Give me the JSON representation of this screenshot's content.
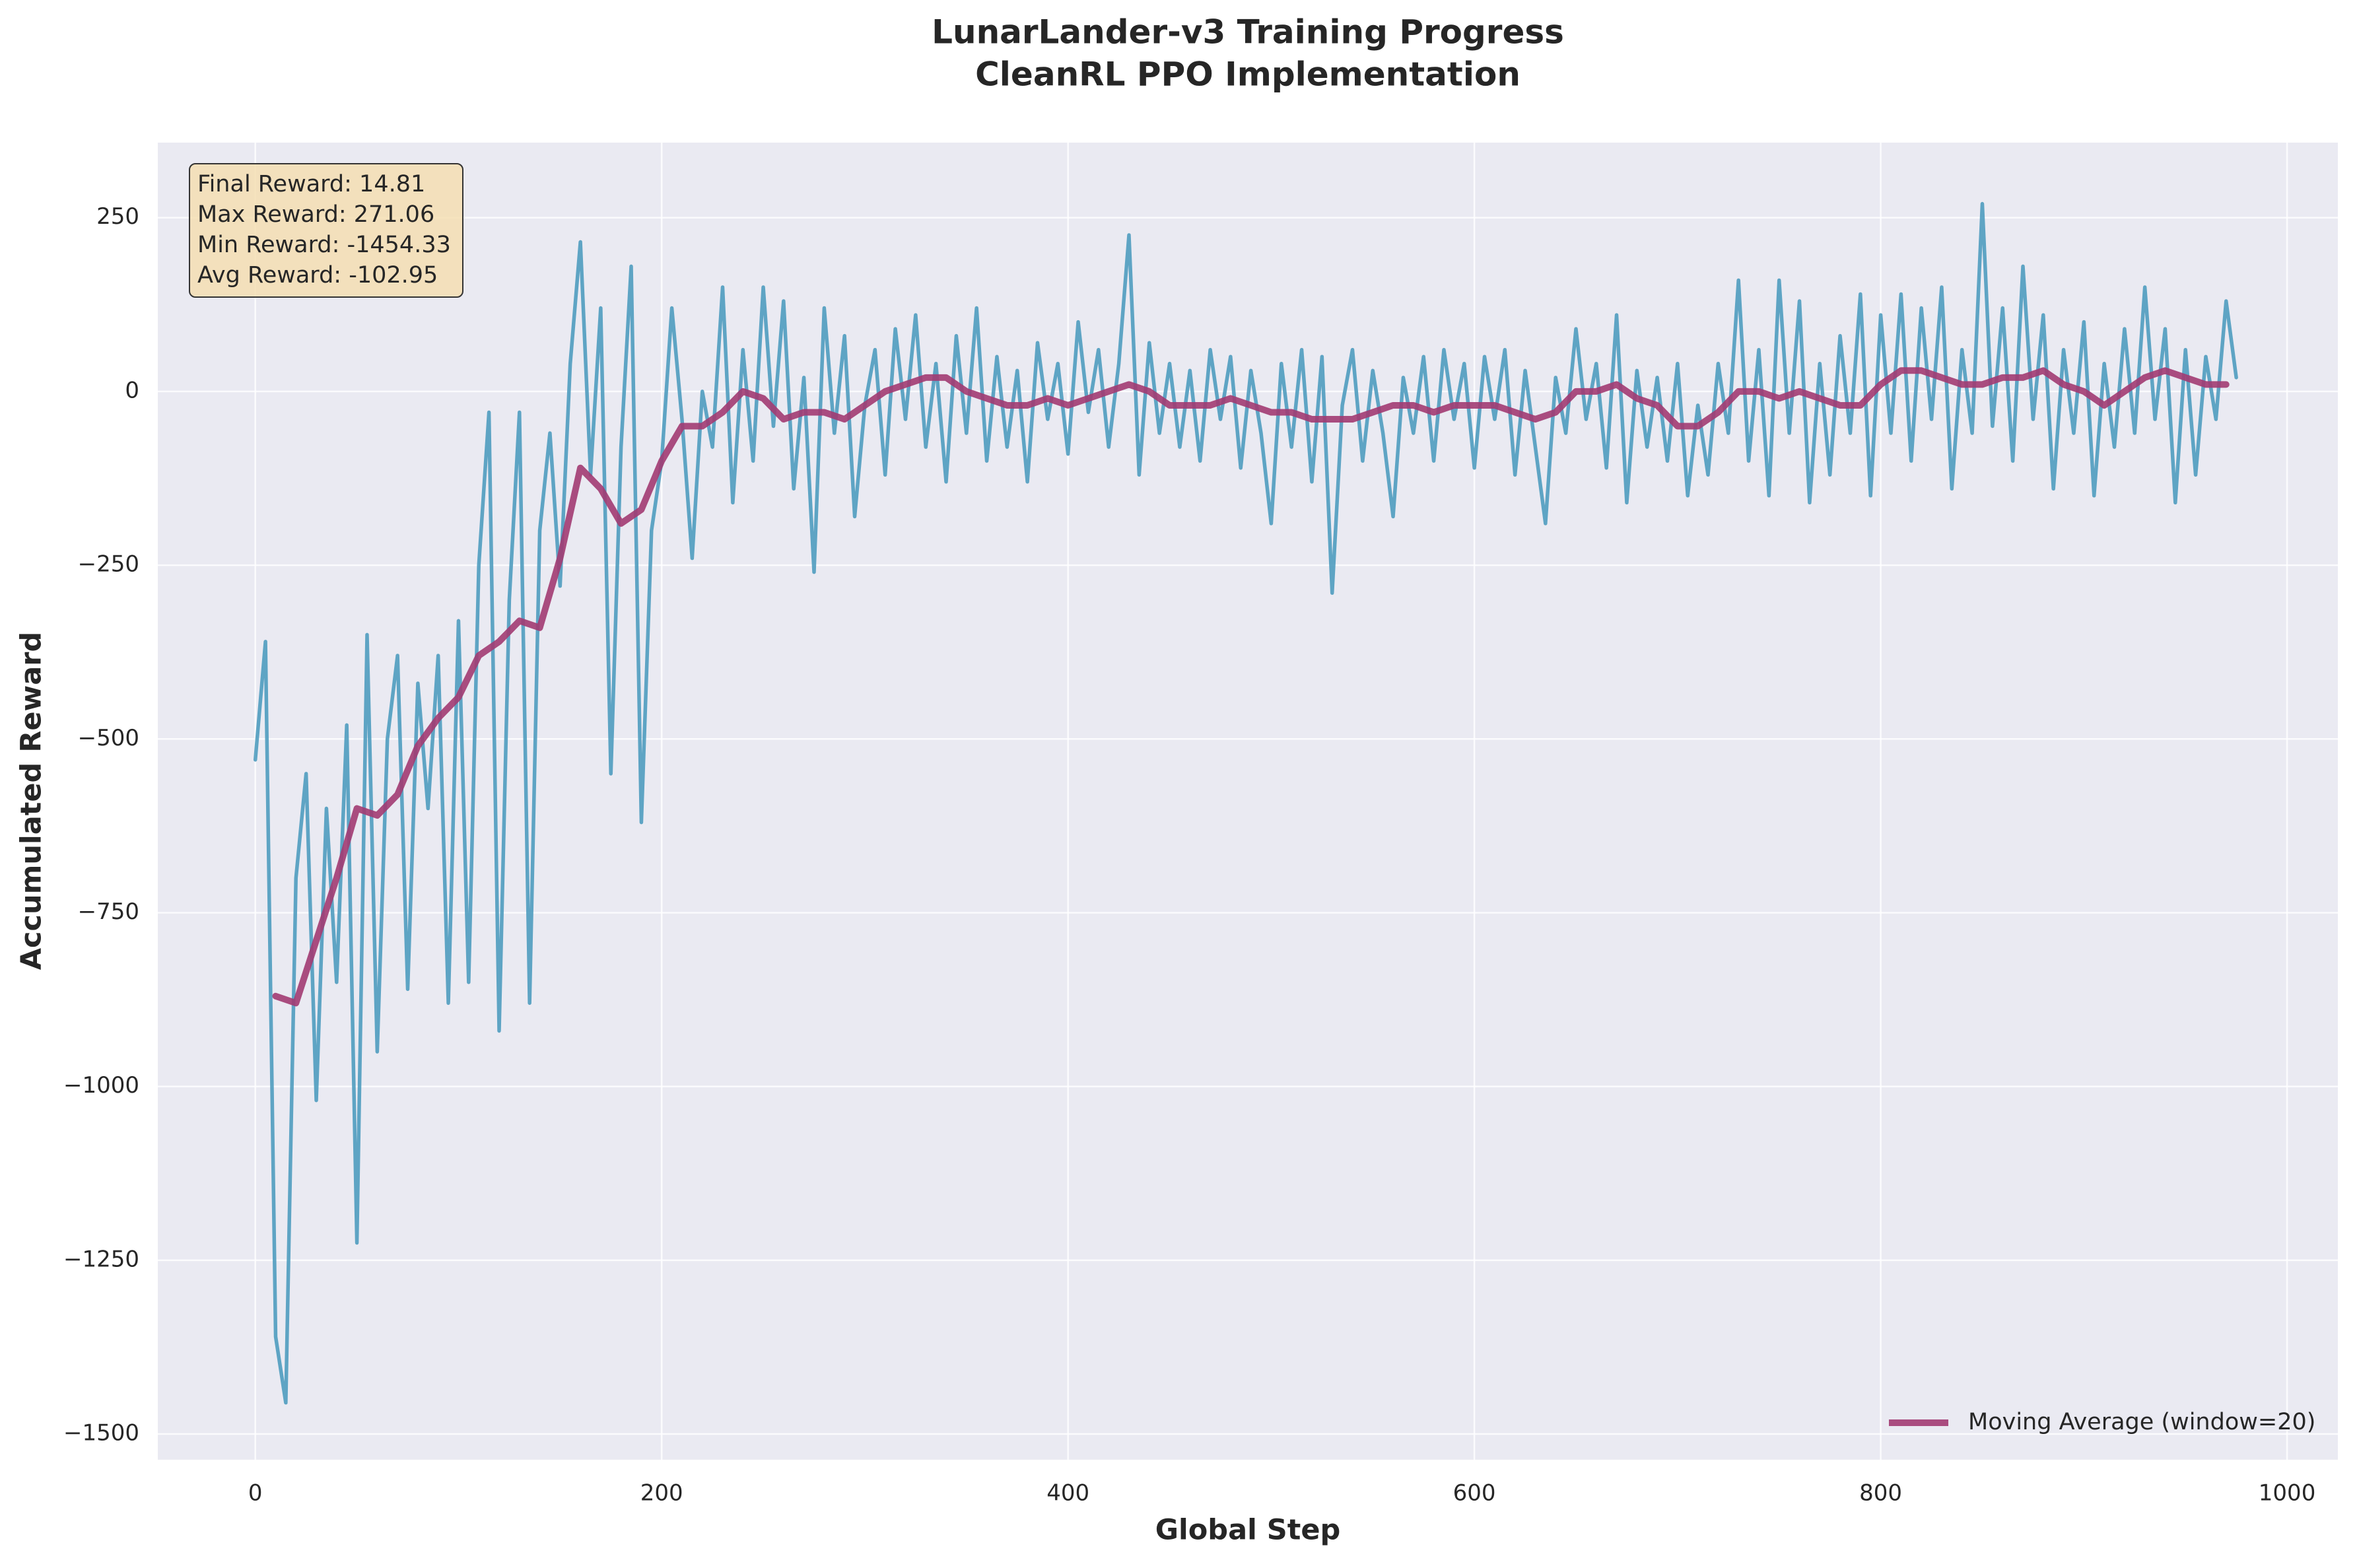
{
  "chart_data": {
    "type": "line",
    "title": "LunarLander-v3 Training Progress",
    "subtitle": "CleanRL PPO Implementation",
    "x_label": "Global Step",
    "y_label": "Accumulated Reward",
    "annotation": [
      "Final Reward: 14.81",
      "Max Reward: 271.06",
      "Min Reward: -1454.33",
      "Avg Reward: -102.95"
    ],
    "xlim": [
      -48,
      1025
    ],
    "ylim": [
      -1537,
      358
    ],
    "xticks": [
      0,
      200,
      400,
      600,
      800,
      1000
    ],
    "yticks": [
      {
        "value": -1500,
        "label": "−1500"
      },
      {
        "value": -1250,
        "label": "−1250"
      },
      {
        "value": -1000,
        "label": "−1000"
      },
      {
        "value": -750,
        "label": "−750"
      },
      {
        "value": -500,
        "label": "−500"
      },
      {
        "value": -250,
        "label": "−250"
      },
      0,
      250
    ],
    "grid": true,
    "legend": "lower right",
    "series": [
      {
        "color": "#4f9cbf",
        "x": [
          0,
          5,
          10,
          15,
          20,
          25,
          30,
          35,
          40,
          45,
          50,
          55,
          60,
          65,
          70,
          75,
          80,
          85,
          90,
          95,
          100,
          105,
          110,
          115,
          120,
          125,
          130,
          135,
          140,
          145,
          150,
          155,
          160,
          165,
          170,
          175,
          180,
          185,
          190,
          195,
          200,
          205,
          210,
          215,
          220,
          225,
          230,
          235,
          240,
          245,
          250,
          255,
          260,
          265,
          270,
          275,
          280,
          285,
          290,
          295,
          300,
          305,
          310,
          315,
          320,
          325,
          330,
          335,
          340,
          345,
          350,
          355,
          360,
          365,
          370,
          375,
          380,
          385,
          390,
          395,
          400,
          405,
          410,
          415,
          420,
          425,
          430,
          435,
          440,
          445,
          450,
          455,
          460,
          465,
          470,
          475,
          480,
          485,
          490,
          495,
          500,
          505,
          510,
          515,
          520,
          525,
          530,
          535,
          540,
          545,
          550,
          555,
          560,
          565,
          570,
          575,
          580,
          585,
          590,
          595,
          600,
          605,
          610,
          615,
          620,
          625,
          630,
          635,
          640,
          645,
          650,
          655,
          660,
          665,
          670,
          675,
          680,
          685,
          690,
          695,
          700,
          705,
          710,
          715,
          720,
          725,
          730,
          735,
          740,
          745,
          750,
          755,
          760,
          765,
          770,
          775,
          780,
          785,
          790,
          795,
          800,
          805,
          810,
          815,
          820,
          825,
          830,
          835,
          840,
          845,
          850,
          855,
          860,
          865,
          870,
          875,
          880,
          885,
          890,
          895,
          900,
          905,
          910,
          915,
          920,
          925,
          930,
          935,
          940,
          945,
          950,
          955,
          960,
          965,
          970,
          975
        ],
        "values": [
          -530,
          -360,
          -1360,
          -1455,
          -700,
          -550,
          -1020,
          -600,
          -850,
          -480,
          -1225,
          -350,
          -950,
          -500,
          -380,
          -860,
          -420,
          -600,
          -380,
          -880,
          -330,
          -850,
          -250,
          -30,
          -920,
          -300,
          -30,
          -880,
          -200,
          -60,
          -280,
          40,
          215,
          -120,
          120,
          -550,
          -80,
          180,
          -620,
          -200,
          -100,
          120,
          -40,
          -240,
          0,
          -80,
          150,
          -160,
          60,
          -100,
          150,
          -50,
          130,
          -140,
          20,
          -260,
          120,
          -60,
          80,
          -180,
          -20,
          60,
          -120,
          90,
          -40,
          110,
          -80,
          40,
          -130,
          80,
          -60,
          120,
          -100,
          50,
          -80,
          30,
          -130,
          70,
          -40,
          40,
          -90,
          100,
          -30,
          60,
          -80,
          40,
          225,
          -120,
          70,
          -60,
          40,
          -80,
          30,
          -100,
          60,
          -40,
          50,
          -110,
          30,
          -60,
          -190,
          40,
          -80,
          60,
          -130,
          50,
          -290,
          -20,
          60,
          -100,
          30,
          -60,
          -180,
          20,
          -60,
          50,
          -100,
          60,
          -40,
          40,
          -110,
          50,
          -40,
          60,
          -120,
          30,
          -80,
          -190,
          20,
          -60,
          90,
          -40,
          40,
          -110,
          110,
          -160,
          30,
          -80,
          20,
          -100,
          40,
          -150,
          -20,
          -120,
          40,
          -60,
          160,
          -100,
          60,
          -150,
          160,
          -60,
          130,
          -160,
          40,
          -120,
          80,
          -60,
          140,
          -150,
          110,
          -60,
          140,
          -100,
          120,
          -40,
          150,
          -140,
          60,
          -60,
          270,
          -50,
          120,
          -100,
          180,
          -40,
          110,
          -140,
          60,
          -60,
          100,
          -150,
          40,
          -80,
          90,
          -60,
          150,
          -40,
          90,
          -160,
          60,
          -120,
          50,
          -40,
          130,
          20
        ]
      },
      {
        "name": "Moving Average (window=20)",
        "color": "#a23b72",
        "x": [
          10,
          20,
          30,
          40,
          50,
          60,
          70,
          80,
          90,
          100,
          110,
          120,
          130,
          140,
          150,
          160,
          170,
          180,
          190,
          200,
          210,
          220,
          230,
          240,
          250,
          260,
          270,
          280,
          290,
          300,
          310,
          320,
          330,
          340,
          350,
          360,
          370,
          380,
          390,
          400,
          410,
          420,
          430,
          440,
          450,
          460,
          470,
          480,
          490,
          500,
          510,
          520,
          530,
          540,
          550,
          560,
          570,
          580,
          590,
          600,
          610,
          620,
          630,
          640,
          650,
          660,
          670,
          680,
          690,
          700,
          710,
          720,
          730,
          740,
          750,
          760,
          770,
          780,
          790,
          800,
          810,
          820,
          830,
          840,
          850,
          860,
          870,
          880,
          890,
          900,
          910,
          920,
          930,
          940,
          950,
          960,
          970
        ],
        "values": [
          -870,
          -880,
          -790,
          -700,
          -600,
          -610,
          -580,
          -510,
          -470,
          -440,
          -380,
          -360,
          -330,
          -340,
          -240,
          -110,
          -140,
          -190,
          -170,
          -100,
          -50,
          -50,
          -30,
          0,
          -10,
          -40,
          -30,
          -30,
          -40,
          -20,
          0,
          10,
          20,
          20,
          0,
          -10,
          -20,
          -20,
          -10,
          -20,
          -10,
          0,
          10,
          0,
          -20,
          -20,
          -20,
          -10,
          -20,
          -30,
          -30,
          -40,
          -40,
          -40,
          -30,
          -20,
          -20,
          -30,
          -20,
          -20,
          -20,
          -30,
          -40,
          -30,
          0,
          0,
          10,
          -10,
          -20,
          -50,
          -50,
          -30,
          0,
          0,
          -10,
          0,
          -10,
          -20,
          -20,
          10,
          30,
          30,
          20,
          10,
          10,
          20,
          20,
          30,
          10,
          0,
          -20,
          0,
          20,
          30,
          20,
          10,
          10
        ]
      }
    ]
  }
}
